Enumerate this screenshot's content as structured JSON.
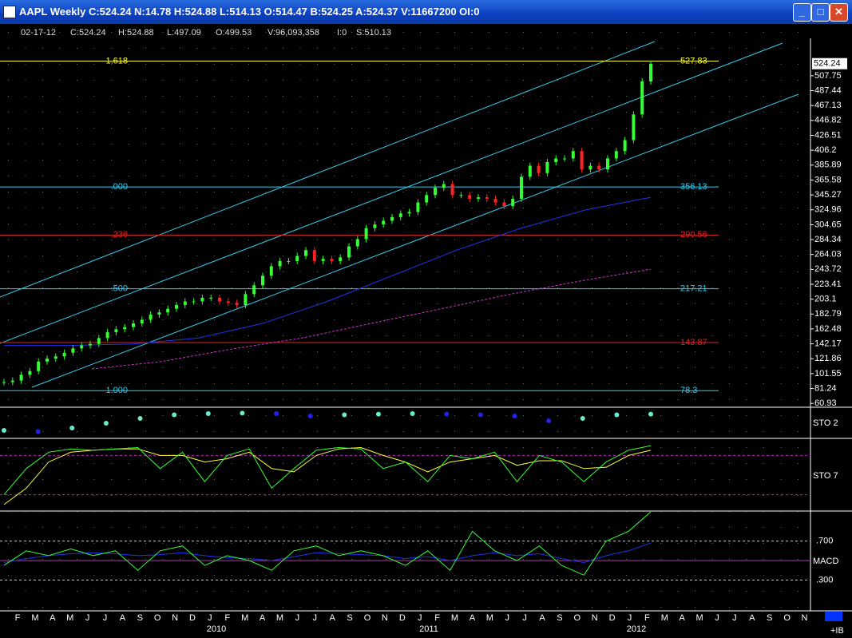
{
  "window": {
    "title": "AAPL Weekly C:524.24 N:14.78 H:524.88 L:514.13 O:514.47 B:524.25 A:524.37 V:11667200 OI:0"
  },
  "info_bar": [
    "02-17-12",
    "C:524.24",
    "H:524.88",
    "L:497.09",
    "O:499.53",
    "V:96,093,358",
    "I:0",
    "S:510.13"
  ],
  "price_panel": {
    "ylim": [
      55.7,
      558.8
    ],
    "yticks": [
      507.75,
      487.44,
      467.13,
      446.82,
      426.51,
      406.2,
      385.89,
      365.58,
      345.27,
      324.96,
      304.65,
      284.34,
      264.03,
      243.72,
      223.41,
      203.1,
      182.79,
      162.48,
      142.17,
      121.86,
      101.55,
      81.24,
      60.93
    ],
    "last_price": 524.24,
    "fib_levels": [
      {
        "ratio": "1.618",
        "value": 527.83,
        "color": "#ffff33"
      },
      {
        "ratio": ".000",
        "value": 356.13,
        "color": "#33ccee"
      },
      {
        "ratio": ".236",
        "value": 290.56,
        "color": "#dd2222"
      },
      {
        "ratio": ".500",
        "value": 217.21,
        "color": "#33ccee"
      },
      {
        "value": 143.87,
        "color": "#dd2222"
      },
      {
        "ratio": "1.000",
        "value": 78.3,
        "color": "#33ccee"
      }
    ],
    "closes": [
      90,
      92,
      100,
      105,
      118,
      122,
      125,
      130,
      136,
      140,
      142,
      150,
      158,
      162,
      165,
      170,
      175,
      182,
      185,
      190,
      195,
      200,
      200,
      205,
      205,
      200,
      198,
      195,
      210,
      222,
      235,
      248,
      255,
      255,
      262,
      270,
      255,
      258,
      255,
      260,
      275,
      285,
      300,
      305,
      310,
      315,
      320,
      322,
      335,
      345,
      355,
      360,
      345,
      345,
      340,
      342,
      340,
      335,
      330,
      340,
      370,
      385,
      375,
      390,
      395,
      395,
      405,
      380,
      385,
      380,
      395,
      405,
      420,
      455,
      500,
      524.24
    ],
    "ma_blue": [
      140,
      140,
      142,
      150,
      170,
      200,
      235,
      270,
      300,
      325,
      342
    ],
    "ma_magenta": [
      108,
      118,
      135,
      150,
      170,
      190,
      210,
      228,
      244
    ]
  },
  "sto2": {
    "label": "STO  2",
    "values": [
      20,
      15,
      30,
      50,
      70,
      85,
      90,
      92,
      90,
      80,
      85,
      88,
      90,
      88,
      85,
      80,
      60,
      70,
      85,
      88
    ]
  },
  "sto7": {
    "label": "STO  7",
    "ylim": [
      0,
      100
    ],
    "levels": [
      80,
      20
    ],
    "k": [
      20,
      60,
      85,
      90,
      88,
      90,
      92,
      60,
      85,
      40,
      80,
      90,
      30,
      60,
      88,
      92,
      90,
      60,
      70,
      40,
      80,
      75,
      85,
      40,
      80,
      70,
      40,
      70,
      88,
      95
    ],
    "d": [
      5,
      30,
      70,
      85,
      88,
      90,
      90,
      80,
      80,
      70,
      75,
      85,
      60,
      55,
      80,
      90,
      92,
      80,
      70,
      55,
      70,
      75,
      80,
      65,
      72,
      72,
      60,
      62,
      80,
      88
    ]
  },
  "macd": {
    "label": "MACD",
    "ylim": [
      0,
      1
    ],
    "levels": [
      {
        "value": 0.7,
        "label": ".700"
      },
      {
        "value": 0.3,
        "label": ".300"
      }
    ],
    "mid": 0.5,
    "fast": [
      0.45,
      0.6,
      0.55,
      0.62,
      0.55,
      0.6,
      0.4,
      0.6,
      0.65,
      0.45,
      0.55,
      0.5,
      0.4,
      0.6,
      0.65,
      0.55,
      0.6,
      0.55,
      0.45,
      0.6,
      0.4,
      0.8,
      0.6,
      0.5,
      0.65,
      0.45,
      0.35,
      0.7,
      0.8,
      1.0
    ],
    "slow": [
      0.48,
      0.52,
      0.55,
      0.57,
      0.58,
      0.57,
      0.55,
      0.56,
      0.58,
      0.55,
      0.53,
      0.52,
      0.5,
      0.54,
      0.58,
      0.57,
      0.56,
      0.55,
      0.52,
      0.54,
      0.5,
      0.55,
      0.58,
      0.55,
      0.57,
      0.52,
      0.48,
      0.55,
      0.6,
      0.68
    ]
  },
  "months": [
    "F",
    "M",
    "A",
    "M",
    "J",
    "J",
    "A",
    "S",
    "O",
    "N",
    "D",
    "J",
    "F",
    "M",
    "A",
    "M",
    "J",
    "J",
    "A",
    "S",
    "O",
    "N",
    "D",
    "J",
    "F",
    "M",
    "A",
    "M",
    "J",
    "J",
    "A",
    "S",
    "O",
    "N",
    "D",
    "J",
    "F",
    "M",
    "A",
    "M",
    "J",
    "J",
    "A",
    "S",
    "O",
    "N"
  ],
  "years": [
    "2010",
    "2011",
    "2012"
  ],
  "status": "+IB"
}
